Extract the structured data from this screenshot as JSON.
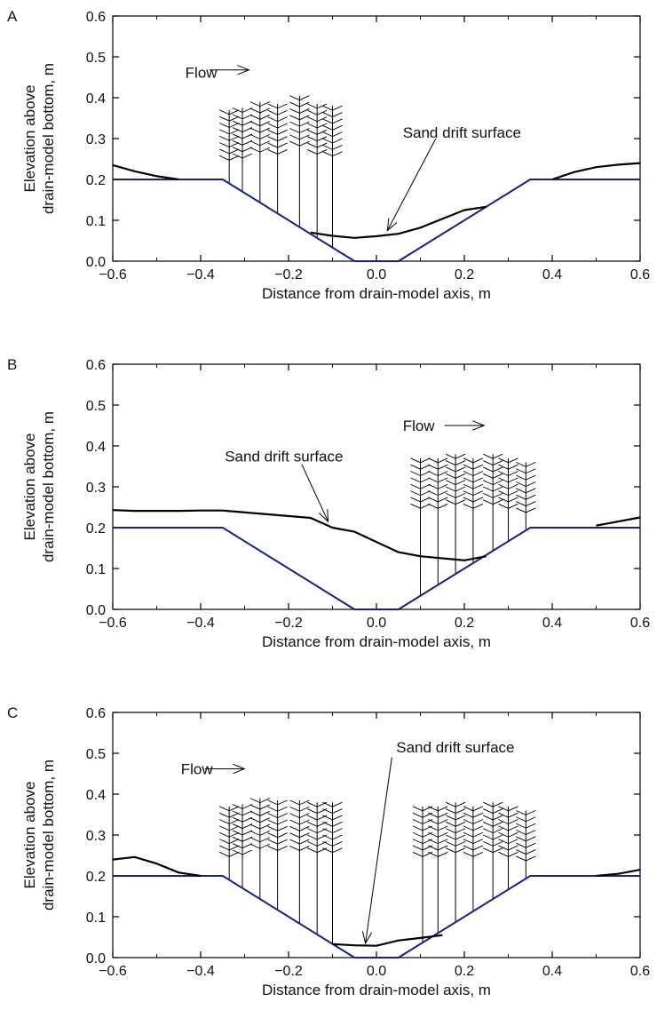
{
  "colors": {
    "channel": "#1b1f8a",
    "surface": "#000000",
    "axis": "#000000",
    "plant": "#000000"
  },
  "chart_data": [
    {
      "type": "line",
      "panel_label": "A",
      "xlabel": "Distance from drain-model axis, m",
      "ylabel_lines": [
        "Elevation above",
        "drain-model bottom, m"
      ],
      "xlim": [
        -0.6,
        0.6
      ],
      "ylim": [
        0.0,
        0.6
      ],
      "x_ticks": [
        "−0.6",
        "−0.4",
        "−0.2",
        "0.0",
        "0.2",
        "0.4",
        "0.6"
      ],
      "y_ticks": [
        "0.0",
        "0.1",
        "0.2",
        "0.3",
        "0.4",
        "0.5",
        "0.6"
      ],
      "grid": false,
      "series": [
        {
          "name": "Channel profile",
          "role": "channel",
          "color": "#1b1f8a",
          "x": [
            -0.6,
            -0.35,
            -0.05,
            0.05,
            0.35,
            0.6
          ],
          "y": [
            0.2,
            0.2,
            0.0,
            0.0,
            0.2,
            0.2
          ]
        },
        {
          "name": "Sand drift surface",
          "role": "surface",
          "color": "#000000",
          "segments": [
            {
              "x": [
                -0.6,
                -0.55,
                -0.5,
                -0.45
              ],
              "y": [
                0.235,
                0.22,
                0.208,
                0.2
              ]
            },
            {
              "x": [
                -0.15,
                -0.1,
                -0.05,
                0.0,
                0.05,
                0.1,
                0.2,
                0.25
              ],
              "y": [
                0.07,
                0.062,
                0.057,
                0.061,
                0.067,
                0.082,
                0.125,
                0.133
              ]
            },
            {
              "x": [
                0.4,
                0.45,
                0.5,
                0.55,
                0.6
              ],
              "y": [
                0.2,
                0.218,
                0.23,
                0.236,
                0.24
              ]
            }
          ]
        }
      ],
      "vegetation": [
        {
          "x": -0.335,
          "top": 0.37
        },
        {
          "x": -0.305,
          "top": 0.375
        },
        {
          "x": -0.265,
          "top": 0.39
        },
        {
          "x": -0.225,
          "top": 0.385
        },
        {
          "x": -0.175,
          "top": 0.405
        },
        {
          "x": -0.135,
          "top": 0.385
        },
        {
          "x": -0.1,
          "top": 0.38
        }
      ],
      "annotations": [
        {
          "text": "Flow",
          "x": -0.435,
          "y": 0.462,
          "kind": "flow",
          "arrow": [
            -0.38,
            0.468,
            -0.29,
            0.468
          ]
        },
        {
          "text": "Sand drift surface",
          "x": 0.06,
          "y": 0.315,
          "kind": "label",
          "arrow": [
            0.135,
            0.3,
            0.025,
            0.075
          ]
        }
      ]
    },
    {
      "type": "line",
      "panel_label": "B",
      "xlabel": "Distance from drain-model axis, m",
      "ylabel_lines": [
        "Elevation above",
        "drain-model bottom, m"
      ],
      "xlim": [
        -0.6,
        0.6
      ],
      "ylim": [
        0.0,
        0.6
      ],
      "x_ticks": [
        "−0.6",
        "−0.4",
        "−0.2",
        "0.0",
        "0.2",
        "0.4",
        "0.6"
      ],
      "y_ticks": [
        "0.0",
        "0.1",
        "0.2",
        "0.3",
        "0.4",
        "0.5",
        "0.6"
      ],
      "grid": false,
      "series": [
        {
          "name": "Channel profile",
          "role": "channel",
          "color": "#1b1f8a",
          "x": [
            -0.6,
            -0.35,
            -0.05,
            0.05,
            0.35,
            0.6
          ],
          "y": [
            0.2,
            0.2,
            0.0,
            0.0,
            0.2,
            0.2
          ]
        },
        {
          "name": "Sand drift surface",
          "role": "surface",
          "color": "#000000",
          "segments": [
            {
              "x": [
                -0.6,
                -0.55,
                -0.45,
                -0.4,
                -0.35,
                -0.15,
                -0.1,
                -0.05,
                0.0,
                0.05,
                0.1,
                0.2,
                0.25
              ],
              "y": [
                0.243,
                0.241,
                0.241,
                0.242,
                0.242,
                0.224,
                0.2,
                0.19,
                0.165,
                0.14,
                0.13,
                0.12,
                0.13
              ]
            },
            {
              "x": [
                0.5,
                0.6
              ],
              "y": [
                0.205,
                0.225
              ]
            }
          ]
        }
      ],
      "vegetation": [
        {
          "x": 0.1,
          "top": 0.37
        },
        {
          "x": 0.14,
          "top": 0.37
        },
        {
          "x": 0.18,
          "top": 0.38
        },
        {
          "x": 0.22,
          "top": 0.37
        },
        {
          "x": 0.265,
          "top": 0.38
        },
        {
          "x": 0.3,
          "top": 0.37
        },
        {
          "x": 0.34,
          "top": 0.36
        }
      ],
      "annotations": [
        {
          "text": "Flow",
          "x": 0.06,
          "y": 0.45,
          "kind": "flow",
          "arrow": [
            0.155,
            0.45,
            0.245,
            0.45
          ]
        },
        {
          "text": "Sand drift surface",
          "x": -0.345,
          "y": 0.375,
          "kind": "label",
          "arrow": [
            -0.17,
            0.355,
            -0.11,
            0.215
          ]
        }
      ]
    },
    {
      "type": "line",
      "panel_label": "C",
      "xlabel": "Distance from drain-model axis, m",
      "ylabel_lines": [
        "Elevation above",
        "drain-model bottom, m"
      ],
      "xlim": [
        -0.6,
        0.6
      ],
      "ylim": [
        0.0,
        0.6
      ],
      "x_ticks": [
        "−0.6",
        "−0.4",
        "−0.2",
        "0.0",
        "0.2",
        "0.4",
        "0.6"
      ],
      "y_ticks": [
        "0.0",
        "0.1",
        "0.2",
        "0.3",
        "0.4",
        "0.5",
        "0.6"
      ],
      "grid": false,
      "series": [
        {
          "name": "Channel profile",
          "role": "channel",
          "color": "#1b1f8a",
          "x": [
            -0.6,
            -0.35,
            -0.05,
            0.05,
            0.35,
            0.6
          ],
          "y": [
            0.2,
            0.2,
            0.0,
            0.0,
            0.2,
            0.2
          ]
        },
        {
          "name": "Sand drift surface",
          "role": "surface",
          "color": "#000000",
          "segments": [
            {
              "x": [
                -0.6,
                -0.55,
                -0.5,
                -0.45,
                -0.4
              ],
              "y": [
                0.24,
                0.246,
                0.23,
                0.208,
                0.2
              ]
            },
            {
              "x": [
                -0.1,
                -0.05,
                0.0,
                0.05,
                0.1,
                0.15
              ],
              "y": [
                0.033,
                0.03,
                0.029,
                0.042,
                0.048,
                0.055
              ]
            },
            {
              "x": [
                0.5,
                0.55,
                0.6
              ],
              "y": [
                0.2,
                0.205,
                0.215
              ]
            }
          ]
        }
      ],
      "vegetation": [
        {
          "x": -0.335,
          "top": 0.37
        },
        {
          "x": -0.305,
          "top": 0.375
        },
        {
          "x": -0.265,
          "top": 0.39
        },
        {
          "x": -0.225,
          "top": 0.385
        },
        {
          "x": -0.175,
          "top": 0.385
        },
        {
          "x": -0.135,
          "top": 0.38
        },
        {
          "x": -0.1,
          "top": 0.38
        },
        {
          "x": 0.105,
          "top": 0.37
        },
        {
          "x": 0.14,
          "top": 0.37
        },
        {
          "x": 0.18,
          "top": 0.38
        },
        {
          "x": 0.22,
          "top": 0.37
        },
        {
          "x": 0.265,
          "top": 0.38
        },
        {
          "x": 0.3,
          "top": 0.37
        },
        {
          "x": 0.34,
          "top": 0.36
        }
      ],
      "annotations": [
        {
          "text": "Flow",
          "x": -0.445,
          "y": 0.462,
          "kind": "flow",
          "arrow": [
            -0.39,
            0.462,
            -0.3,
            0.462
          ]
        },
        {
          "text": "Sand drift surface",
          "x": 0.045,
          "y": 0.515,
          "kind": "label",
          "arrow": [
            0.035,
            0.49,
            -0.025,
            0.035
          ]
        }
      ]
    }
  ]
}
